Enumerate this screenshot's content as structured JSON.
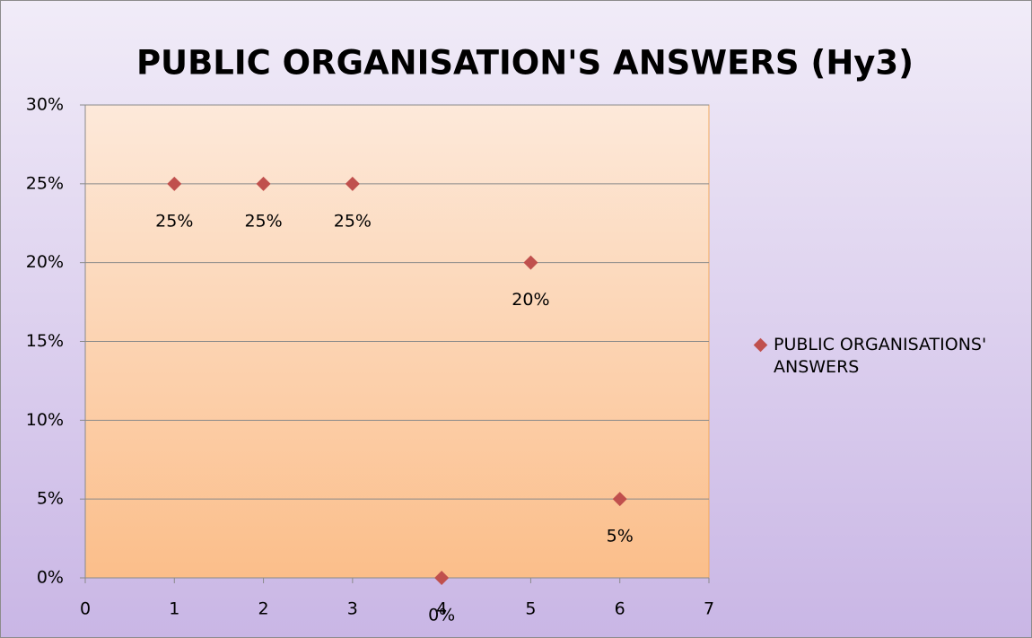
{
  "chart_data": {
    "type": "scatter",
    "title": "PUBLIC ORGANISATION'S ANSWERS (Hy3)",
    "x": [
      1,
      2,
      3,
      4,
      5,
      6
    ],
    "series": [
      {
        "name": "PUBLIC ORGANISATIONS' ANSWERS",
        "color": "#c0504d",
        "values": [
          25,
          25,
          25,
          0,
          20,
          5
        ],
        "value_labels": [
          "25%",
          "25%",
          "25%",
          "0%",
          "20%",
          "5%"
        ]
      }
    ],
    "xlim": [
      0,
      7
    ],
    "xticks": [
      0,
      1,
      2,
      3,
      4,
      5,
      6,
      7
    ],
    "ylim": [
      0,
      30
    ],
    "yticks": [
      {
        "value": 0,
        "label": "0%"
      },
      {
        "value": 5,
        "label": "5%"
      },
      {
        "value": 10,
        "label": "10%"
      },
      {
        "value": 15,
        "label": "15%"
      },
      {
        "value": 20,
        "label": "20%"
      },
      {
        "value": 25,
        "label": "25%"
      },
      {
        "value": 30,
        "label": "30%"
      }
    ],
    "grid": true,
    "legend": "right"
  }
}
